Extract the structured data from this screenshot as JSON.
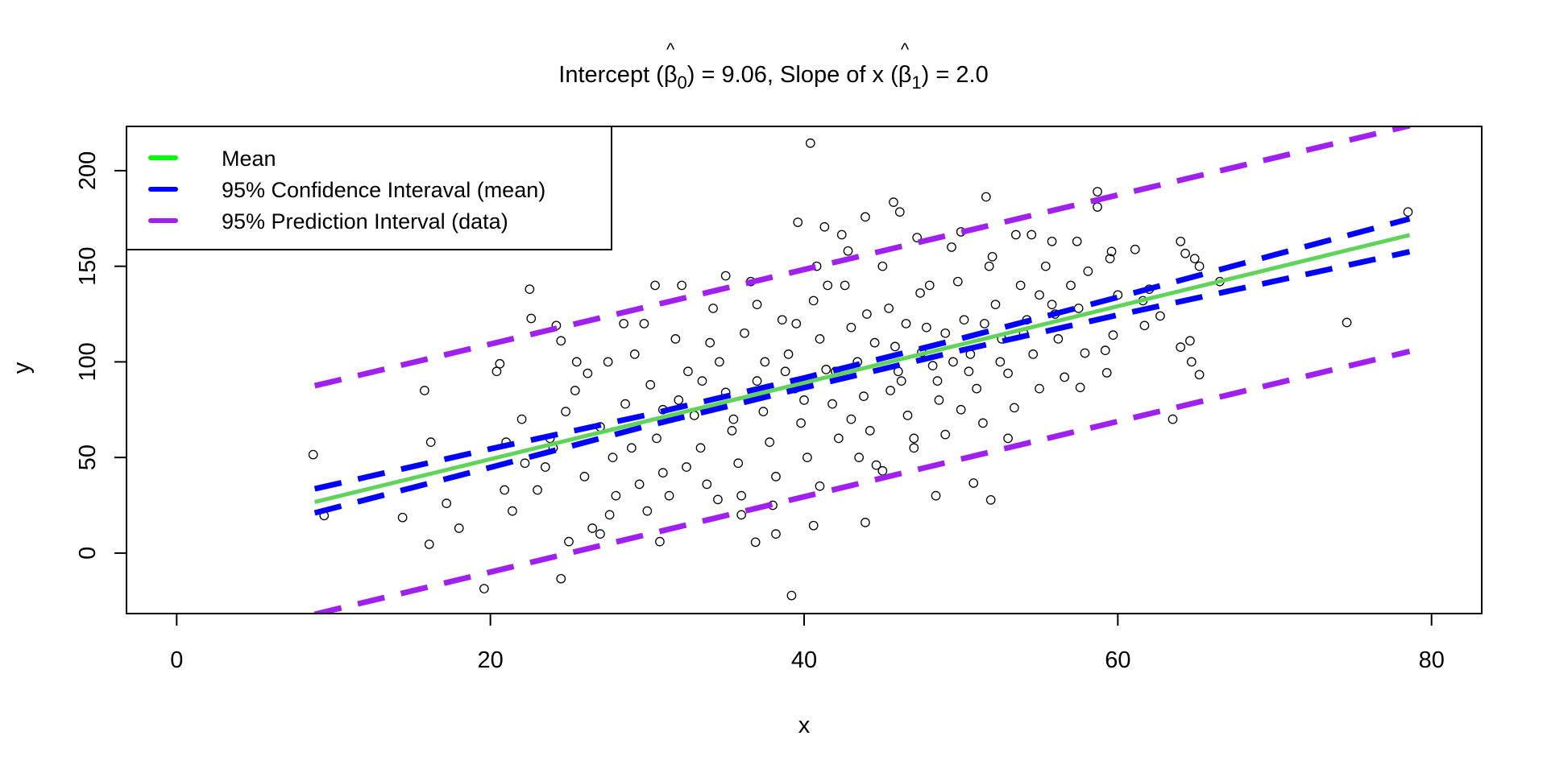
{
  "chart_data": {
    "type": "scatter",
    "title": {
      "prefix": "Intercept (",
      "beta": "β",
      "hat": "^",
      "sub0": "0",
      "mid": ") = 9.06, Slope of x (",
      "sub1": "1",
      "suffix": ") = 2.0"
    },
    "xlabel": "x",
    "ylabel": "y",
    "xlim": [
      0,
      80
    ],
    "ylim": [
      -22.2,
      213.7
    ],
    "xticks": [
      0,
      20,
      40,
      60,
      80
    ],
    "yticks": [
      0,
      50,
      100,
      150,
      200
    ],
    "xtick_labels": [
      "0",
      "20",
      "40",
      "60",
      "80"
    ],
    "ytick_labels": [
      "0",
      "50",
      "100",
      "150",
      "200"
    ],
    "intercept": 9.06,
    "slope": 2.0,
    "legend": {
      "placement": "top-left",
      "entries": [
        {
          "label": "Mean",
          "color": "#00ff00"
        },
        {
          "label": "95% Confidence Interaval (mean)",
          "color": "#0000ff"
        },
        {
          "label": "95% Prediction Interval (data)",
          "color": "#a020f0"
        }
      ]
    },
    "lines": [
      {
        "name": "mean",
        "color": "#5fd35a",
        "dashed": false,
        "x": [
          8.8,
          78.6
        ],
        "y": [
          26.7,
          166.3
        ]
      },
      {
        "name": "ci-upper",
        "color": "#0000ff",
        "dashed": true,
        "x": [
          8.8,
          20,
          30,
          40,
          50,
          60,
          70,
          78.6
        ],
        "y": [
          33.6,
          54.5,
          72.3,
          91.6,
          112.2,
          133.8,
          156.0,
          174.8
        ]
      },
      {
        "name": "ci-lower",
        "color": "#0000ff",
        "dashed": true,
        "x": [
          8.8,
          20,
          30,
          40,
          50,
          60,
          70,
          78.6
        ],
        "y": [
          21.0,
          44.8,
          66.5,
          86.5,
          106.0,
          124.5,
          142.2,
          157.6
        ]
      },
      {
        "name": "pi-upper",
        "color": "#a020f0",
        "dashed": true,
        "x": [
          8.8,
          78.6
        ],
        "y": [
          87.5,
          223.5
        ]
      },
      {
        "name": "pi-lower",
        "color": "#a020f0",
        "dashed": true,
        "x": [
          8.8,
          78.6
        ],
        "y": [
          -32.0,
          105.5
        ]
      }
    ],
    "points": [
      [
        8.7,
        51.5
      ],
      [
        9.4,
        19.6
      ],
      [
        14.4,
        18.6
      ],
      [
        15.8,
        85
      ],
      [
        16.1,
        4.6
      ],
      [
        16.2,
        58
      ],
      [
        18.0,
        13
      ],
      [
        17.2,
        26
      ],
      [
        19.6,
        -18.6
      ],
      [
        20.4,
        95
      ],
      [
        20.6,
        99
      ],
      [
        22.5,
        138
      ],
      [
        22.6,
        122.7
      ],
      [
        24.5,
        -13.4
      ],
      [
        24.2,
        119
      ],
      [
        24.5,
        111
      ],
      [
        39.2,
        -22.2
      ],
      [
        40.4,
        214.4
      ],
      [
        45.7,
        183.5
      ],
      [
        46.1,
        178.4
      ],
      [
        51.6,
        186.3
      ],
      [
        58.7,
        189
      ],
      [
        58.7,
        181
      ],
      [
        78.5,
        178.4
      ],
      [
        74.6,
        120.6
      ],
      [
        63.5,
        70
      ],
      [
        64,
        107.7
      ],
      [
        64.6,
        111
      ],
      [
        64.7,
        100
      ],
      [
        65.2,
        93.3
      ],
      [
        64,
        163
      ],
      [
        64.3,
        156.7
      ],
      [
        64.9,
        154
      ],
      [
        65.2,
        150
      ],
      [
        66.5,
        142
      ],
      [
        61.6,
        132
      ],
      [
        61.7,
        119
      ],
      [
        62.7,
        124
      ],
      [
        61.1,
        158.8
      ],
      [
        59.5,
        154
      ],
      [
        59.6,
        157.7
      ],
      [
        57.9,
        104.6
      ],
      [
        57.6,
        86.6
      ],
      [
        59.3,
        94.3
      ],
      [
        59.2,
        106
      ],
      [
        59.7,
        114
      ],
      [
        58.1,
        147.4
      ],
      [
        57.4,
        163
      ],
      [
        55.8,
        163
      ],
      [
        54.5,
        166.5
      ],
      [
        53.5,
        166.5
      ],
      [
        50.8,
        36.6
      ],
      [
        51.9,
        27.8
      ],
      [
        48.4,
        30
      ],
      [
        43.9,
        16
      ],
      [
        40.6,
        14.4
      ],
      [
        39.6,
        173
      ],
      [
        41.3,
        170.6
      ],
      [
        42.4,
        166.5
      ],
      [
        43.9,
        175.8
      ],
      [
        36.9,
        5.7
      ],
      [
        38.2,
        10
      ],
      [
        30.8,
        6
      ],
      [
        25.0,
        6
      ],
      [
        26.5,
        13
      ],
      [
        27.6,
        20
      ],
      [
        23.0,
        33
      ],
      [
        21.4,
        22
      ],
      [
        20.9,
        33
      ],
      [
        22.2,
        47
      ],
      [
        23.8,
        60
      ],
      [
        24.8,
        74
      ],
      [
        25.4,
        85
      ],
      [
        26.2,
        94
      ],
      [
        27.0,
        66
      ],
      [
        27.8,
        50
      ],
      [
        28.6,
        78
      ],
      [
        29.2,
        104
      ],
      [
        29.8,
        120
      ],
      [
        30.2,
        88
      ],
      [
        30.6,
        60
      ],
      [
        31.0,
        42
      ],
      [
        31.4,
        30
      ],
      [
        31.8,
        112
      ],
      [
        32.2,
        140
      ],
      [
        32.6,
        95
      ],
      [
        33.0,
        72
      ],
      [
        33.4,
        55
      ],
      [
        33.8,
        36
      ],
      [
        34.2,
        128
      ],
      [
        34.6,
        100
      ],
      [
        35.0,
        84
      ],
      [
        35.4,
        64
      ],
      [
        35.8,
        47
      ],
      [
        36.2,
        115
      ],
      [
        36.6,
        142
      ],
      [
        37.0,
        90
      ],
      [
        37.4,
        74
      ],
      [
        37.8,
        58
      ],
      [
        38.2,
        40
      ],
      [
        38.6,
        122
      ],
      [
        39.0,
        104
      ],
      [
        39.4,
        86
      ],
      [
        39.8,
        68
      ],
      [
        40.2,
        50
      ],
      [
        40.6,
        132
      ],
      [
        41.0,
        112
      ],
      [
        41.4,
        96
      ],
      [
        41.8,
        78
      ],
      [
        42.2,
        60
      ],
      [
        42.6,
        140
      ],
      [
        43.0,
        118
      ],
      [
        43.4,
        100
      ],
      [
        43.8,
        82
      ],
      [
        44.2,
        64
      ],
      [
        44.6,
        46
      ],
      [
        45.0,
        150
      ],
      [
        45.4,
        128
      ],
      [
        45.8,
        108
      ],
      [
        46.2,
        90
      ],
      [
        46.6,
        72
      ],
      [
        47.0,
        55
      ],
      [
        47.4,
        136
      ],
      [
        47.8,
        118
      ],
      [
        48.2,
        98
      ],
      [
        48.6,
        80
      ],
      [
        49.0,
        62
      ],
      [
        49.4,
        160
      ],
      [
        49.8,
        142
      ],
      [
        50.2,
        122
      ],
      [
        50.6,
        104
      ],
      [
        51.0,
        86
      ],
      [
        51.4,
        68
      ],
      [
        51.8,
        150
      ],
      [
        52.2,
        130
      ],
      [
        52.6,
        112
      ],
      [
        53.0,
        94
      ],
      [
        53.4,
        76
      ],
      [
        53.8,
        140
      ],
      [
        54.2,
        122
      ],
      [
        54.6,
        104
      ],
      [
        55.0,
        86
      ],
      [
        55.4,
        150
      ],
      [
        55.8,
        130
      ],
      [
        56.2,
        112
      ],
      [
        56.6,
        92
      ],
      [
        57.0,
        140
      ],
      [
        26.0,
        40
      ],
      [
        28.0,
        30
      ],
      [
        29.0,
        55
      ],
      [
        32.0,
        80
      ],
      [
        34.0,
        110
      ],
      [
        36.0,
        30
      ],
      [
        37.5,
        100
      ],
      [
        39.5,
        120
      ],
      [
        41.5,
        140
      ],
      [
        43.5,
        50
      ],
      [
        44.5,
        110
      ],
      [
        46.5,
        120
      ],
      [
        48.0,
        140
      ],
      [
        49.5,
        100
      ],
      [
        51.5,
        120
      ],
      [
        53.0,
        60
      ],
      [
        27.5,
        100
      ],
      [
        31.0,
        75
      ],
      [
        33.5,
        90
      ],
      [
        35.5,
        70
      ],
      [
        37.0,
        130
      ],
      [
        38.8,
        95
      ],
      [
        40.0,
        80
      ],
      [
        42.0,
        95
      ],
      [
        44.0,
        125
      ],
      [
        45.5,
        85
      ],
      [
        47.5,
        105
      ],
      [
        49.0,
        115
      ],
      [
        50.5,
        95
      ],
      [
        52.5,
        100
      ],
      [
        54.0,
        115
      ],
      [
        56.0,
        125
      ],
      [
        24.0,
        55
      ],
      [
        22.0,
        70
      ],
      [
        21.0,
        58
      ],
      [
        23.5,
        45
      ],
      [
        25.5,
        100
      ],
      [
        28.5,
        120
      ],
      [
        30.5,
        140
      ],
      [
        35.0,
        145
      ],
      [
        40.8,
        150
      ],
      [
        42.8,
        158
      ],
      [
        47.2,
        165
      ],
      [
        50.0,
        168
      ],
      [
        52.0,
        155
      ],
      [
        55.0,
        135
      ],
      [
        57.5,
        128
      ],
      [
        60.0,
        135
      ],
      [
        62.0,
        138
      ],
      [
        45.0,
        43
      ],
      [
        47.0,
        60
      ],
      [
        41.0,
        35
      ],
      [
        38.0,
        25
      ],
      [
        36.0,
        20
      ],
      [
        34.5,
        28
      ],
      [
        32.5,
        45
      ],
      [
        30.0,
        22
      ],
      [
        29.5,
        36
      ],
      [
        27.0,
        10
      ],
      [
        43.0,
        70
      ],
      [
        46.0,
        95
      ],
      [
        48.5,
        90
      ],
      [
        50.0,
        75
      ]
    ]
  }
}
